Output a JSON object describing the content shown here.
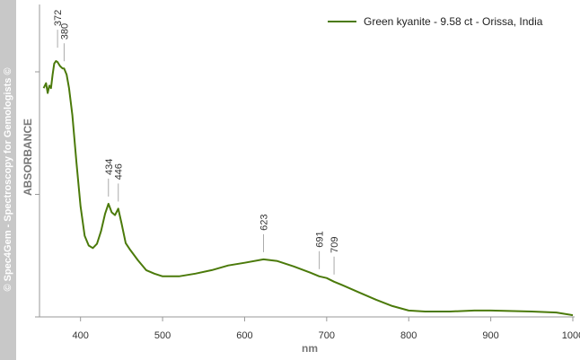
{
  "chart_data": {
    "type": "line",
    "watermark": "© Spec4Gem - Spectroscopy for Gemologists ©",
    "xlabel": "nm",
    "ylabel": "ABSORBANCE",
    "xlim": [
      350,
      1000
    ],
    "xticks": [
      400,
      500,
      600,
      700,
      800,
      900,
      1000
    ],
    "ylim": [
      0,
      1.27
    ],
    "legend": "top-right",
    "x": [
      355,
      358,
      360,
      362,
      364,
      366,
      368,
      370,
      372,
      375,
      378,
      380,
      383,
      386,
      390,
      395,
      400,
      405,
      410,
      415,
      420,
      425,
      430,
      434,
      438,
      442,
      446,
      450,
      455,
      460,
      470,
      480,
      490,
      500,
      520,
      540,
      560,
      580,
      600,
      623,
      640,
      660,
      680,
      691,
      700,
      709,
      720,
      740,
      760,
      780,
      800,
      820,
      850,
      880,
      900,
      950,
      980,
      1000
    ],
    "series": [
      {
        "name": "Green kyanite - 9.58 ct - Orissa, India",
        "color": "#4b7a0a",
        "values": [
          0.93,
          0.95,
          0.91,
          0.94,
          0.93,
          0.985,
          1.03,
          1.04,
          1.036,
          1.02,
          1.01,
          1.01,
          0.985,
          0.93,
          0.82,
          0.63,
          0.45,
          0.33,
          0.29,
          0.28,
          0.297,
          0.348,
          0.42,
          0.46,
          0.425,
          0.414,
          0.44,
          0.38,
          0.3,
          0.275,
          0.23,
          0.19,
          0.176,
          0.165,
          0.165,
          0.176,
          0.19,
          0.209,
          0.22,
          0.234,
          0.227,
          0.205,
          0.18,
          0.165,
          0.158,
          0.143,
          0.128,
          0.099,
          0.07,
          0.044,
          0.026,
          0.022,
          0.022,
          0.026,
          0.026,
          0.022,
          0.018,
          0.007
        ]
      }
    ],
    "annotations": [
      372,
      380,
      434,
      446,
      623,
      691,
      709
    ]
  }
}
